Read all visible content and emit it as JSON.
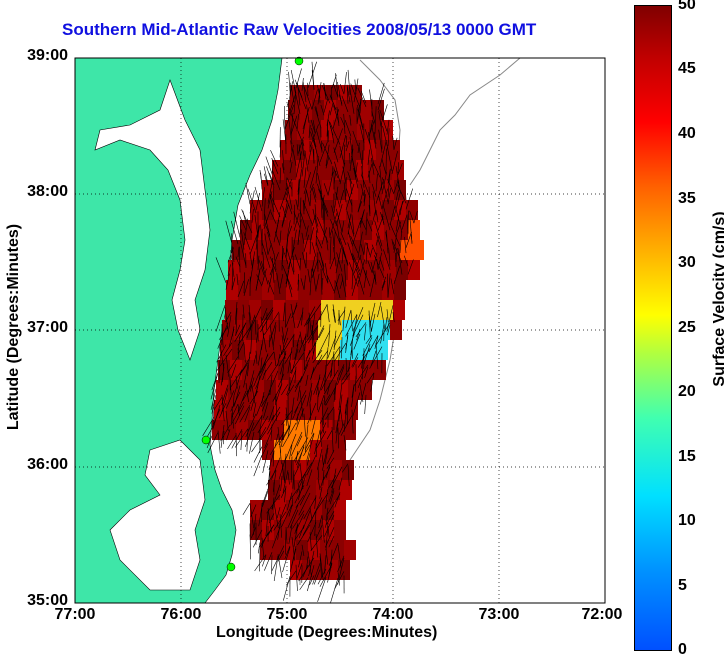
{
  "title": "Southern Mid-Atlantic Raw Velocities 2008/05/13 0000 GMT",
  "axes": {
    "xlabel": "Longitude (Degrees:Minutes)",
    "ylabel": "Latitude (Degrees:Minutes)",
    "x_ticks": [
      "77:00",
      "76:00",
      "75:00",
      "74:00",
      "73:00",
      "72:00"
    ],
    "y_ticks": [
      "39:00",
      "38:00",
      "37:00",
      "36:00",
      "35:00"
    ],
    "grid": true
  },
  "colorbar": {
    "label": "Surface Velocity (cm/s)",
    "ticks": [
      "50",
      "45",
      "40",
      "35",
      "30",
      "25",
      "20",
      "15",
      "10",
      "5",
      "0"
    ],
    "range": [
      0,
      50
    ]
  },
  "colors": {
    "land": "#3ee6a8",
    "title": "#1010e0",
    "vector": "#000000",
    "station": "#00ff00"
  },
  "stations": [
    {
      "lon": -74.9,
      "lat": 39.0
    },
    {
      "lon": -75.7,
      "lat": 36.2
    },
    {
      "lon": -75.5,
      "lat": 35.25
    }
  ]
}
